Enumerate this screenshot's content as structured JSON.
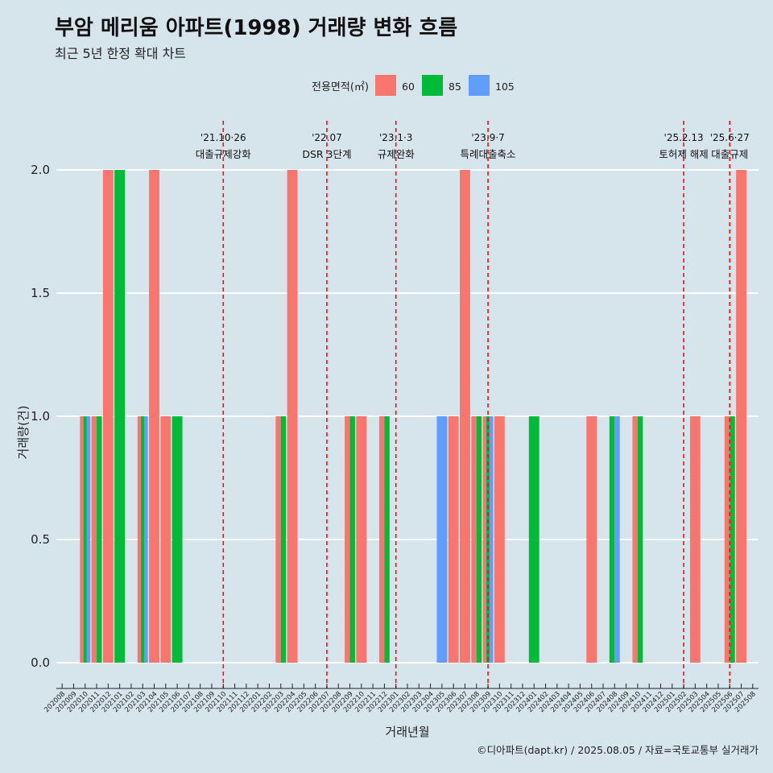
{
  "title": "부암 메리움 아파트(1998) 거래량 변화 흐름",
  "subtitle": "최근 5년 한정 확대 차트",
  "caption": "©디아파트(dapt.kr) / 2025.08.05 / 자료=국토교통부 실거래가",
  "chart_data": {
    "type": "bar",
    "xlabel": "거래년월",
    "ylabel": "거래량(건)",
    "ylim": [
      0,
      2.0
    ],
    "yticks": [
      "0.0",
      "0.5",
      "1.0",
      "1.5",
      "2.0"
    ],
    "grid": "horizontal",
    "legend": {
      "title": "전용면적(㎡)",
      "position": "top",
      "items": [
        {
          "name": "60",
          "color": "#f8766d"
        },
        {
          "name": "85",
          "color": "#00ba38"
        },
        {
          "name": "105",
          "color": "#619cff"
        }
      ]
    },
    "categories": [
      "202008",
      "202009",
      "202010",
      "202011",
      "202012",
      "202101",
      "202102",
      "202103",
      "202104",
      "202105",
      "202106",
      "202107",
      "202108",
      "202109",
      "202110",
      "202111",
      "202112",
      "202201",
      "202202",
      "202203",
      "202204",
      "202205",
      "202206",
      "202207",
      "202208",
      "202209",
      "202210",
      "202211",
      "202212",
      "202301",
      "202302",
      "202303",
      "202304",
      "202305",
      "202306",
      "202307",
      "202308",
      "202309",
      "202310",
      "202311",
      "202312",
      "202401",
      "202402",
      "202403",
      "202404",
      "202405",
      "202406",
      "202407",
      "202408",
      "202409",
      "202410",
      "202411",
      "202412",
      "202501",
      "202502",
      "202503",
      "202504",
      "202505",
      "202506",
      "202507",
      "202508"
    ],
    "series": [
      {
        "name": "60",
        "color": "#f8766d",
        "values": [
          0,
          0,
          1,
          1,
          2,
          0,
          0,
          1,
          2,
          1,
          0,
          0,
          0,
          0,
          0,
          0,
          0,
          0,
          0,
          1,
          2,
          0,
          0,
          0,
          0,
          1,
          1,
          0,
          1,
          0,
          0,
          0,
          0,
          0,
          1,
          2,
          1,
          1,
          1,
          0,
          0,
          0,
          0,
          0,
          0,
          0,
          1,
          0,
          0,
          0,
          1,
          0,
          0,
          0,
          0,
          1,
          0,
          0,
          1,
          2,
          0
        ]
      },
      {
        "name": "85",
        "color": "#00ba38",
        "values": [
          0,
          0,
          1,
          1,
          0,
          2,
          0,
          1,
          0,
          0,
          1,
          0,
          0,
          0,
          0,
          0,
          0,
          0,
          0,
          1,
          0,
          0,
          0,
          0,
          0,
          1,
          0,
          0,
          1,
          0,
          0,
          0,
          0,
          0,
          0,
          0,
          1,
          1,
          0,
          0,
          0,
          1,
          0,
          0,
          0,
          0,
          0,
          0,
          1,
          0,
          1,
          0,
          0,
          0,
          0,
          0,
          0,
          0,
          1,
          0,
          0
        ]
      },
      {
        "name": "105",
        "color": "#619cff",
        "values": [
          0,
          0,
          1,
          0,
          0,
          0,
          0,
          1,
          0,
          0,
          0,
          0,
          0,
          0,
          0,
          0,
          0,
          0,
          0,
          0,
          0,
          0,
          0,
          0,
          0,
          0,
          0,
          0,
          0,
          0,
          0,
          0,
          0,
          1,
          0,
          0,
          0,
          1,
          0,
          0,
          0,
          0,
          0,
          0,
          0,
          0,
          0,
          0,
          1,
          0,
          0,
          0,
          0,
          0,
          0,
          0,
          0,
          0,
          0,
          0,
          0
        ]
      }
    ],
    "annotations": [
      {
        "x": 14.5,
        "date": "'21.10·26",
        "label": "대출규제강화"
      },
      {
        "x": 23.5,
        "date": "'22.07",
        "label": "DSR 3단계"
      },
      {
        "x": 29.5,
        "date": "'23.1·3",
        "label": "규제완화"
      },
      {
        "x": 37.5,
        "date": "'23.9·7",
        "label": "특례대출축소"
      },
      {
        "x": 54.5,
        "date": "'25.2.13",
        "label": "토허제 해제"
      },
      {
        "x": 58.5,
        "date": "'25.6·27",
        "label": "대출규제"
      }
    ]
  }
}
